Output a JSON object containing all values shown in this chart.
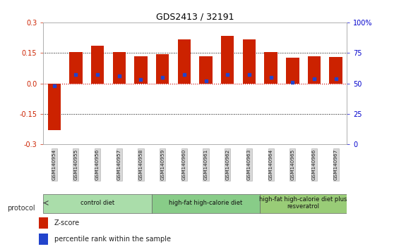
{
  "title": "GDS2413 / 32191",
  "samples": [
    "GSM140954",
    "GSM140955",
    "GSM140956",
    "GSM140957",
    "GSM140958",
    "GSM140959",
    "GSM140960",
    "GSM140961",
    "GSM140962",
    "GSM140963",
    "GSM140964",
    "GSM140965",
    "GSM140966",
    "GSM140967"
  ],
  "zscore": [
    -0.23,
    0.155,
    0.185,
    0.155,
    0.135,
    0.145,
    0.215,
    0.133,
    0.235,
    0.215,
    0.155,
    0.125,
    0.133,
    0.131
  ],
  "pct_rank": [
    48,
    57,
    57,
    56,
    53,
    55,
    57,
    52,
    57,
    57,
    55,
    51,
    54,
    54
  ],
  "ylim": [
    -0.3,
    0.3
  ],
  "y2lim": [
    0,
    100
  ],
  "yticks": [
    -0.3,
    -0.15,
    0.0,
    0.15,
    0.3
  ],
  "y2ticks": [
    0,
    25,
    50,
    75,
    100
  ],
  "bar_color": "#cc2200",
  "dot_color": "#2244cc",
  "bar_width": 0.6,
  "groups": [
    {
      "label": "control diet",
      "start": 0,
      "end": 4,
      "color": "#aaddaa"
    },
    {
      "label": "high-fat high-calorie diet",
      "start": 5,
      "end": 9,
      "color": "#88cc88"
    },
    {
      "label": "high-fat high-calorie diet plus\nresveratrol",
      "start": 10,
      "end": 13,
      "color": "#99cc77"
    }
  ],
  "protocol_label": "protocol",
  "legend": [
    {
      "label": "Z-score",
      "color": "#cc2200"
    },
    {
      "label": "percentile rank within the sample",
      "color": "#2244cc"
    }
  ],
  "bg_color": "#ffffff",
  "plot_bg": "#ffffff",
  "left_axis_color": "#cc2200",
  "right_axis_color": "#0000cc",
  "zero_line_color": "#cc0000",
  "hline_color": "#000000"
}
